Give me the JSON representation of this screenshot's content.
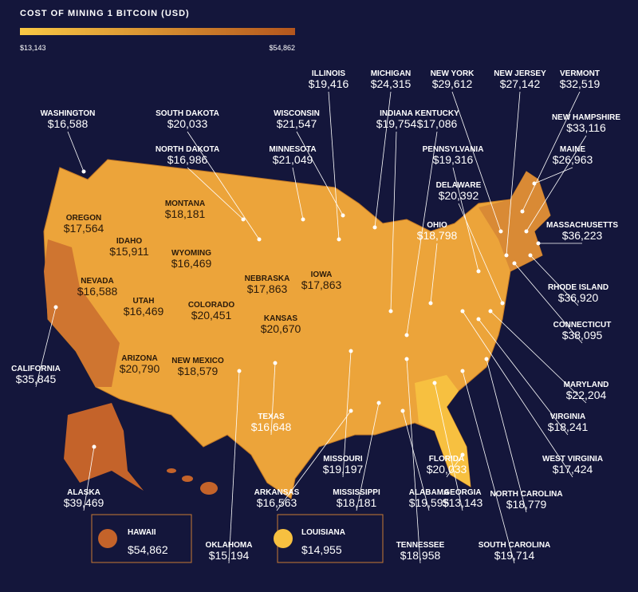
{
  "legend": {
    "title": "COST OF MINING 1 BITCOIN (USD)",
    "min_label": "$13,143",
    "max_label": "$54,862"
  },
  "states": [
    {
      "name": "ILLINOIS",
      "value": "$19,416"
    },
    {
      "name": "MICHIGAN",
      "value": "$24,315"
    },
    {
      "name": "NEW YORK",
      "value": "$29,612"
    },
    {
      "name": "NEW JERSEY",
      "value": "$27,142"
    },
    {
      "name": "VERMONT",
      "value": "$32,519"
    },
    {
      "name": "WASHINGTON",
      "value": "$16,588"
    },
    {
      "name": "SOUTH DAKOTA",
      "value": "$20,033"
    },
    {
      "name": "WISCONSIN",
      "value": "$21,547"
    },
    {
      "name": "INDIANA",
      "value": "$19,754"
    },
    {
      "name": "KENTUCKY",
      "value": "$17,086"
    },
    {
      "name": "NEW HAMPSHIRE",
      "value": "$33,116"
    },
    {
      "name": "NORTH DAKOTA",
      "value": "$16,986"
    },
    {
      "name": "MINNESOTA",
      "value": "$21,049"
    },
    {
      "name": "PENNSYLVANIA",
      "value": "$19,316"
    },
    {
      "name": "MAINE",
      "value": "$26,963"
    },
    {
      "name": "DELAWARE",
      "value": "$20,392"
    },
    {
      "name": "MONTANA",
      "value": "$18,181"
    },
    {
      "name": "OREGON",
      "value": "$17,564"
    },
    {
      "name": "IDAHO",
      "value": "$15,911"
    },
    {
      "name": "WYOMING",
      "value": "$16,469"
    },
    {
      "name": "OHIO",
      "value": "$18,798"
    },
    {
      "name": "MASSACHUSETTS",
      "value": "$36,223"
    },
    {
      "name": "IOWA",
      "value": "$17,863"
    },
    {
      "name": "NEBRASKA",
      "value": "$17,863"
    },
    {
      "name": "NEVADA",
      "value": "$16,588"
    },
    {
      "name": "UTAH",
      "value": "$16,469"
    },
    {
      "name": "COLORADO",
      "value": "$20,451"
    },
    {
      "name": "RHODE ISLAND",
      "value": "$36,920"
    },
    {
      "name": "KANSAS",
      "value": "$20,670"
    },
    {
      "name": "CONNECTICUT",
      "value": "$38,095"
    },
    {
      "name": "CALIFORNIA",
      "value": "$35,845"
    },
    {
      "name": "ARIZONA",
      "value": "$20,790"
    },
    {
      "name": "NEW MEXICO",
      "value": "$18,579"
    },
    {
      "name": "MARYLAND",
      "value": "$22,204"
    },
    {
      "name": "TEXAS",
      "value": "$16,648"
    },
    {
      "name": "VIRGINIA",
      "value": "$18,241"
    },
    {
      "name": "ALASKA",
      "value": "$39,469"
    },
    {
      "name": "MISSOURI",
      "value": "$19,197"
    },
    {
      "name": "FLORIDA",
      "value": "$20,033"
    },
    {
      "name": "WEST VIRGINIA",
      "value": "$17,424"
    },
    {
      "name": "ARKANSAS",
      "value": "$16,563"
    },
    {
      "name": "MISSISSIPPI",
      "value": "$18,181"
    },
    {
      "name": "ALABAMA",
      "value": "$19,595"
    },
    {
      "name": "GEORGIA",
      "value": "$13,143"
    },
    {
      "name": "NORTH CAROLINA",
      "value": "$18,779"
    },
    {
      "name": "OKLAHOMA",
      "value": "$15,194"
    },
    {
      "name": "TENNESSEE",
      "value": "$18,958"
    },
    {
      "name": "SOUTH CAROLINA",
      "value": "$19,714"
    }
  ],
  "highlights": [
    {
      "name": "HAWAII",
      "value": "$54,862"
    },
    {
      "name": "LOUISIANA",
      "value": "$14,955"
    }
  ]
}
